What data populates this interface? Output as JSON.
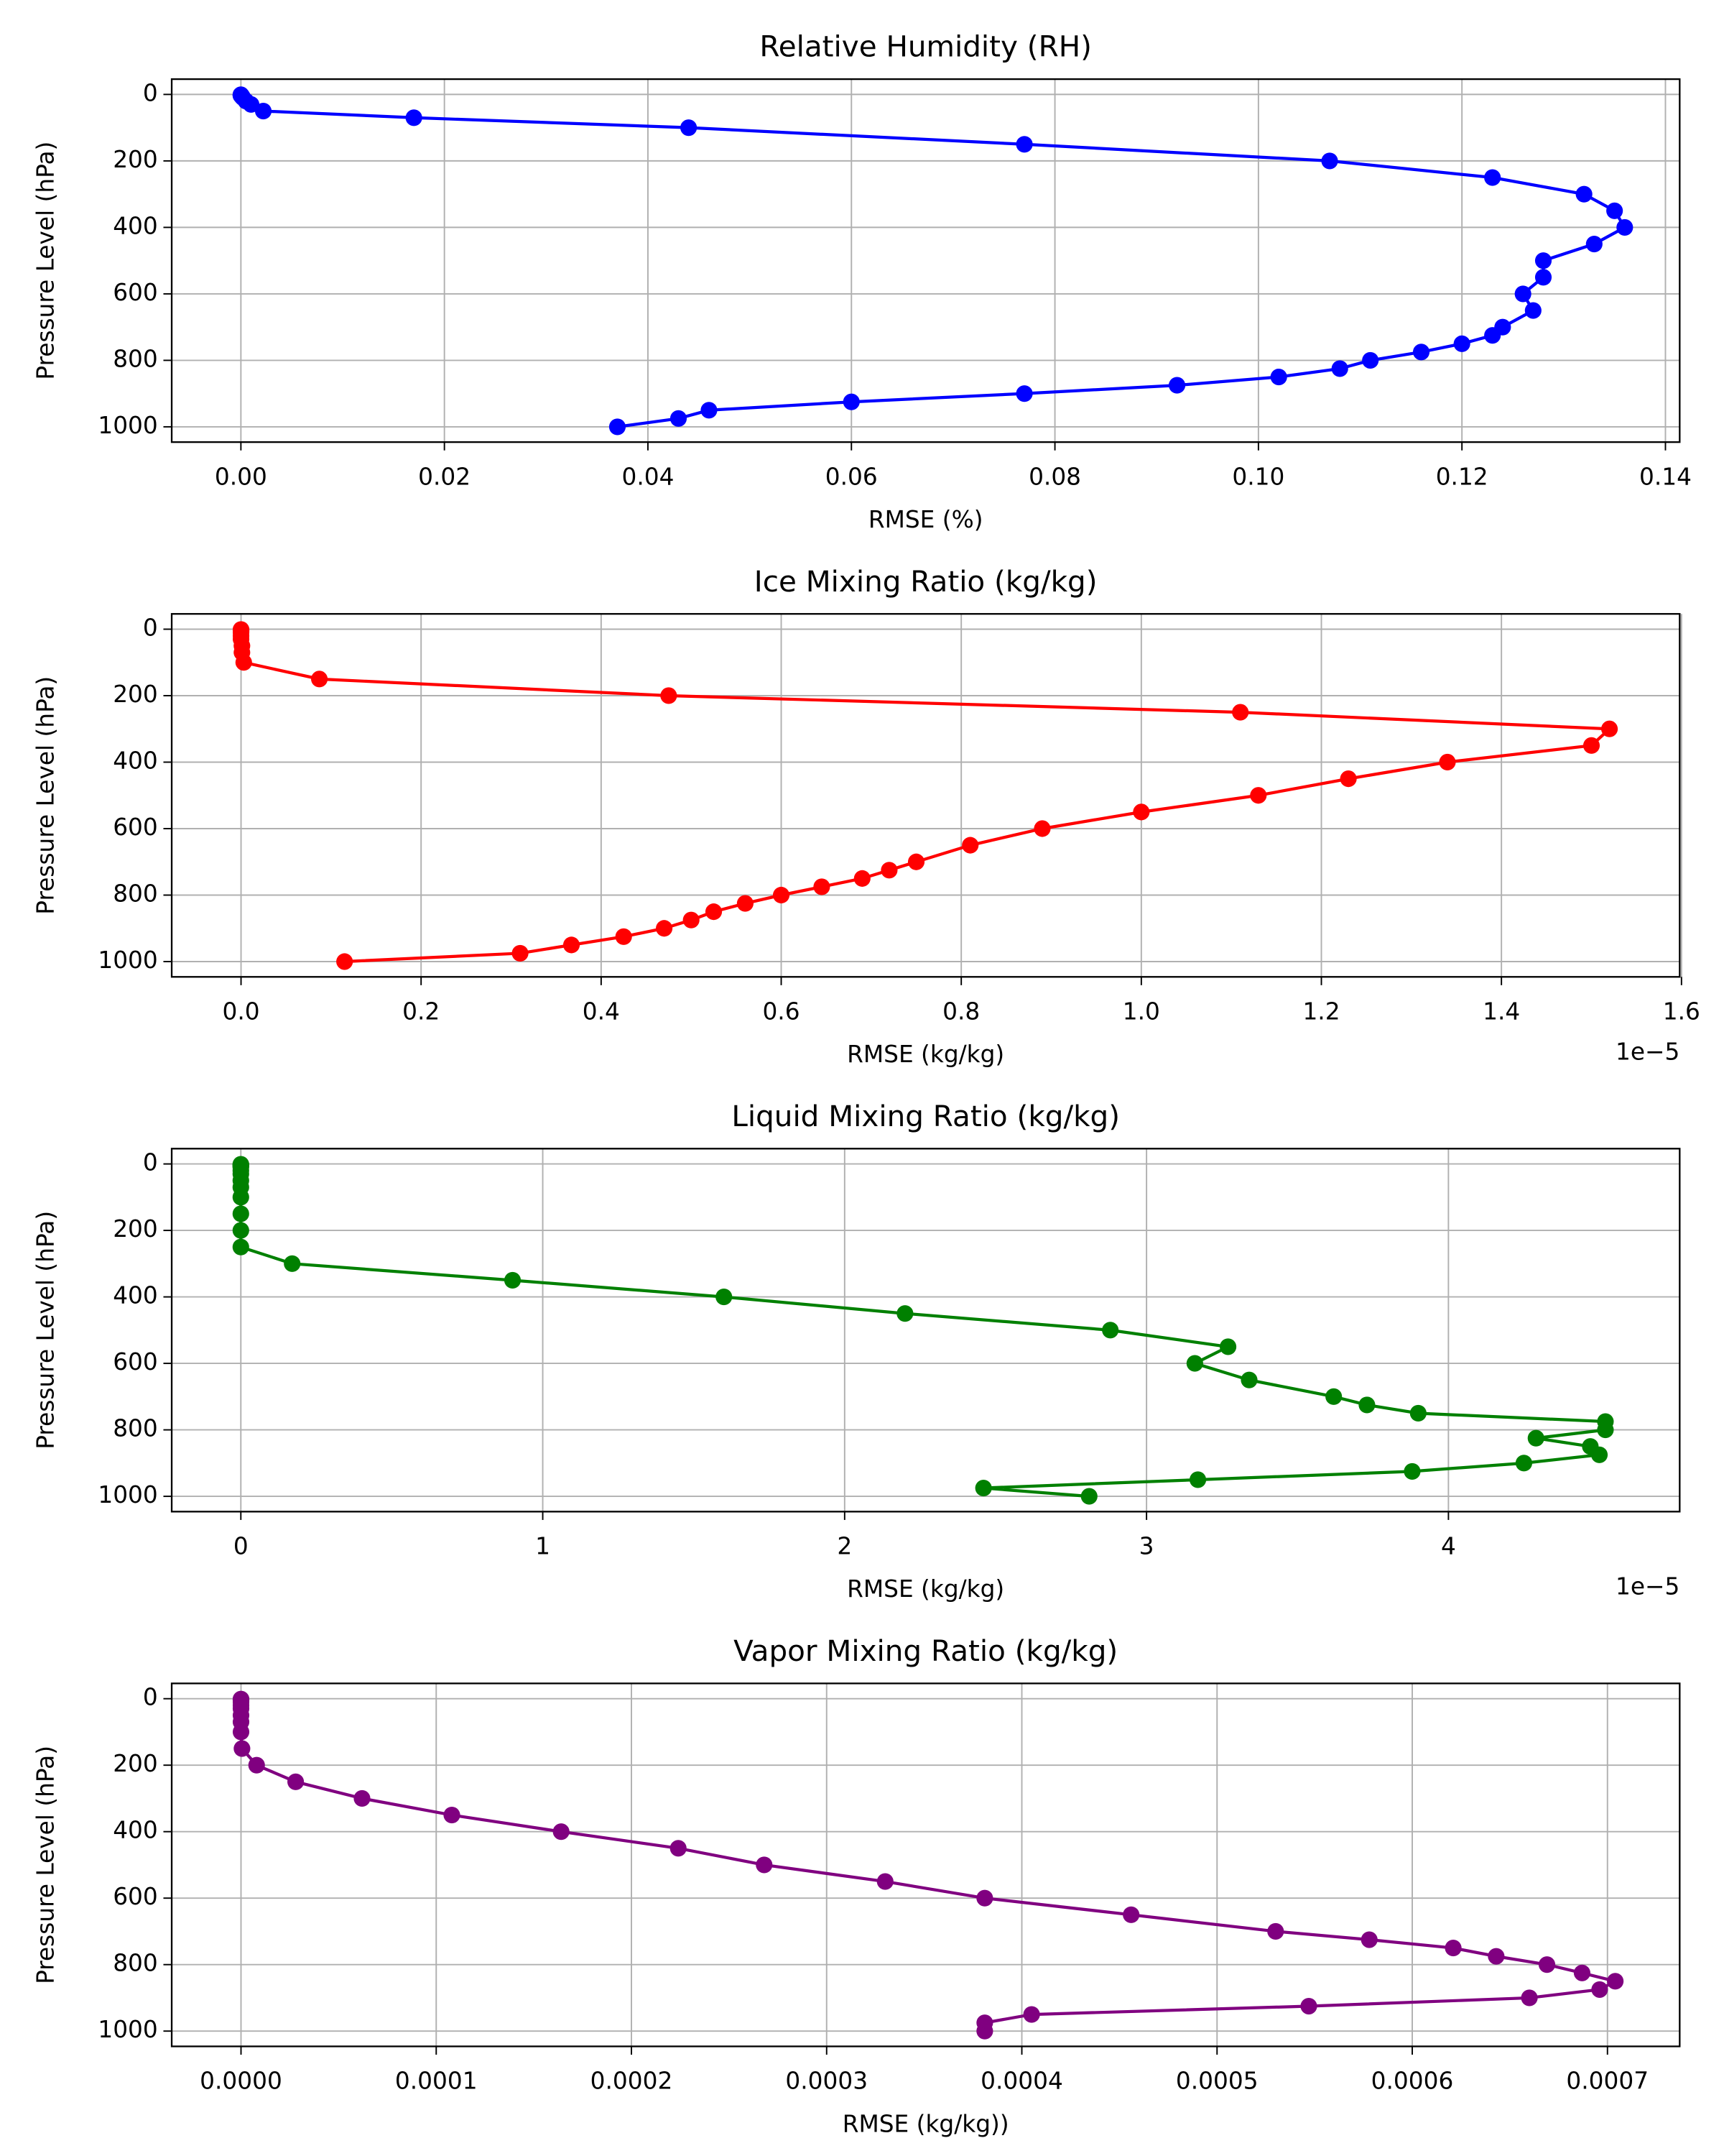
{
  "chart_data": [
    {
      "type": "line",
      "title": "Relative Humidity (RH)",
      "xlabel": "RMSE (%)",
      "ylabel": "Pressure Level (hPa)",
      "color": "#0000ff",
      "grid": true,
      "y": [
        1,
        2,
        3,
        5,
        7,
        10,
        20,
        30,
        50,
        70,
        100,
        150,
        200,
        250,
        300,
        350,
        400,
        450,
        500,
        550,
        600,
        650,
        700,
        725,
        750,
        775,
        800,
        825,
        850,
        875,
        900,
        925,
        950,
        975,
        1000
      ],
      "x": [
        0.0,
        0.0,
        0.0,
        0.0001,
        0.0001,
        0.0002,
        0.0005,
        0.001,
        0.0022,
        0.017,
        0.044,
        0.077,
        0.107,
        0.123,
        0.132,
        0.135,
        0.136,
        0.133,
        0.128,
        0.128,
        0.126,
        0.127,
        0.124,
        0.123,
        0.12,
        0.116,
        0.111,
        0.108,
        0.102,
        0.092,
        0.077,
        0.06,
        0.046,
        0.043,
        0.037
      ],
      "xlim": [
        -0.0068,
        0.1414
      ],
      "ylim": [
        1046,
        -46
      ],
      "xticks": [
        {
          "value": 0,
          "label": "0.00"
        },
        {
          "value": 0.02,
          "label": "0.02"
        },
        {
          "value": 0.04,
          "label": "0.04"
        },
        {
          "value": 0.06,
          "label": "0.06"
        },
        {
          "value": 0.08,
          "label": "0.08"
        },
        {
          "value": 0.1,
          "label": "0.10"
        },
        {
          "value": 0.12,
          "label": "0.12"
        },
        {
          "value": 0.14,
          "label": "0.14"
        }
      ],
      "yticks": [
        0,
        200,
        400,
        600,
        800,
        1000
      ]
    },
    {
      "type": "line",
      "title": "Ice Mixing Ratio (kg/kg)",
      "xlabel": "RMSE (kg/kg)",
      "ylabel": "Pressure Level (hPa)",
      "color": "#ff0000",
      "grid": true,
      "x_offset_label": "1e−5",
      "y": [
        1,
        2,
        3,
        5,
        7,
        10,
        20,
        30,
        50,
        70,
        100,
        150,
        200,
        250,
        300,
        350,
        400,
        450,
        500,
        550,
        600,
        650,
        700,
        725,
        750,
        775,
        800,
        825,
        850,
        875,
        900,
        925,
        950,
        975,
        1000
      ],
      "x": [
        0,
        0,
        0,
        0,
        0,
        0,
        0,
        0,
        0.001,
        0.001,
        0.003,
        0.087,
        0.475,
        1.11,
        1.52,
        1.5,
        1.34,
        1.23,
        1.13,
        1.0,
        0.89,
        0.81,
        0.75,
        0.72,
        0.69,
        0.645,
        0.6,
        0.56,
        0.525,
        0.5,
        0.47,
        0.425,
        0.367,
        0.31,
        0.115
      ],
      "xlim": [
        -0.077,
        1.598
      ],
      "ylim": [
        1046,
        -46
      ],
      "xticks": [
        {
          "value": 0,
          "label": "0.0"
        },
        {
          "value": 0.2,
          "label": "0.2"
        },
        {
          "value": 0.4,
          "label": "0.4"
        },
        {
          "value": 0.6,
          "label": "0.6"
        },
        {
          "value": 0.8,
          "label": "0.8"
        },
        {
          "value": 1.0,
          "label": "1.0"
        },
        {
          "value": 1.2,
          "label": "1.2"
        },
        {
          "value": 1.4,
          "label": "1.4"
        },
        {
          "value": 1.6,
          "label": "1.6"
        }
      ],
      "yticks": [
        0,
        200,
        400,
        600,
        800,
        1000
      ]
    },
    {
      "type": "line",
      "title": "Liquid Mixing Ratio (kg/kg)",
      "xlabel": "RMSE (kg/kg)",
      "ylabel": "Pressure Level (hPa)",
      "color": "#008000",
      "grid": true,
      "x_offset_label": "1e−5",
      "y": [
        1,
        2,
        3,
        5,
        7,
        10,
        20,
        30,
        50,
        70,
        100,
        150,
        200,
        250,
        300,
        350,
        400,
        450,
        500,
        550,
        600,
        650,
        700,
        725,
        750,
        775,
        800,
        825,
        850,
        875,
        900,
        925,
        950,
        975,
        1000
      ],
      "x": [
        0,
        0,
        0,
        0,
        0,
        0,
        0,
        0,
        0,
        0,
        0,
        0,
        0,
        0,
        0.17,
        0.9,
        1.6,
        2.2,
        2.88,
        3.27,
        3.16,
        3.34,
        3.62,
        3.73,
        3.9,
        4.52,
        4.52,
        4.29,
        4.47,
        4.5,
        4.25,
        3.88,
        3.17,
        2.46,
        2.81
      ],
      "xlim": [
        -0.229,
        4.766
      ],
      "ylim": [
        1046,
        -46
      ],
      "xticks": [
        0,
        1,
        2,
        3,
        4
      ],
      "yticks": [
        0,
        200,
        400,
        600,
        800,
        1000
      ]
    },
    {
      "type": "line",
      "title": "Vapor Mixing Ratio (kg/kg)",
      "xlabel": "RMSE (kg/kg))",
      "ylabel": "Pressure Level (hPa)",
      "color": "#800080",
      "grid": true,
      "y": [
        1,
        2,
        3,
        5,
        7,
        10,
        20,
        30,
        50,
        70,
        100,
        150,
        200,
        250,
        300,
        350,
        400,
        450,
        500,
        550,
        600,
        650,
        700,
        725,
        750,
        775,
        800,
        825,
        850,
        875,
        900,
        925,
        950,
        975,
        1000
      ],
      "x": [
        0,
        0,
        0,
        0,
        0,
        0,
        0,
        0,
        0,
        0,
        0,
        5e-07,
        8e-06,
        2.8e-05,
        6.2e-05,
        0.000108,
        0.000164,
        0.000224,
        0.000268,
        0.00033,
        0.000381,
        0.000456,
        0.00053,
        0.000578,
        0.000621,
        0.000643,
        0.000669,
        0.000687,
        0.000704,
        0.000696,
        0.00066,
        0.000547,
        0.000405,
        0.000381,
        0.000381
      ],
      "xlim": [
        -3.55e-05,
        0.000737
      ],
      "ylim": [
        1046,
        -46
      ],
      "xticks": [
        {
          "value": 0,
          "label": "0.0000"
        },
        {
          "value": 0.0001,
          "label": "0.0001"
        },
        {
          "value": 0.0002,
          "label": "0.0002"
        },
        {
          "value": 0.0003,
          "label": "0.0003"
        },
        {
          "value": 0.0004,
          "label": "0.0004"
        },
        {
          "value": 0.0005,
          "label": "0.0005"
        },
        {
          "value": 0.0006,
          "label": "0.0006"
        },
        {
          "value": 0.0007,
          "label": "0.0007"
        }
      ],
      "yticks": [
        0,
        200,
        400,
        600,
        800,
        1000
      ]
    }
  ]
}
